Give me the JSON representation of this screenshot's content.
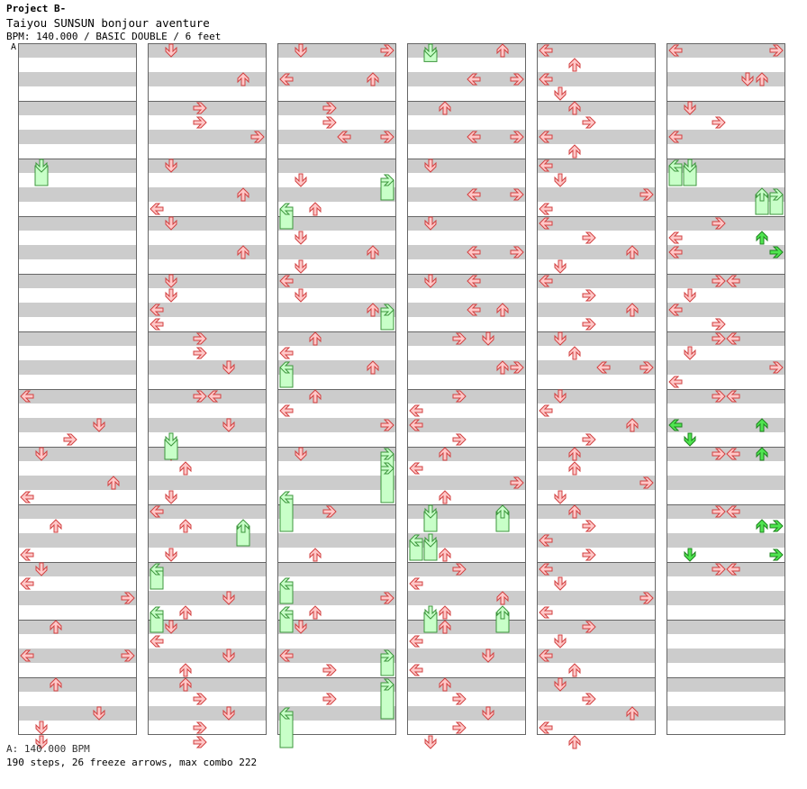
{
  "header": {
    "title": "Project B-",
    "song": "Taiyou SUNSUN bonjour aventure",
    "info": "BPM: 140.000 / BASIC DOUBLE / 6 feet",
    "bpm_marker": "A"
  },
  "footer": {
    "bpm_line": "A: 140.000 BPM",
    "stats": "190 steps, 26 freeze arrows, max combo 222"
  },
  "colors": {
    "tap_fill": "#ffc8c8",
    "tap_stroke": "#d24040",
    "freeze_fill": "#c8ffc8",
    "freeze_stroke": "#3c963c",
    "shock_fill": "#50e650",
    "shock_stroke": "#1e821e",
    "stripe": "#cccccc",
    "column_border": "#666666"
  },
  "columns": [
    {
      "notes": [
        [
          24,
          "L"
        ],
        [
          26,
          "D"
        ],
        [
          27,
          "R"
        ],
        [
          28,
          "D"
        ],
        [
          30,
          "U"
        ],
        [
          31,
          "L"
        ],
        [
          33,
          "U"
        ],
        [
          35,
          "L"
        ],
        [
          36,
          "D"
        ],
        [
          37,
          "L"
        ],
        [
          38,
          "R"
        ],
        [
          40,
          "U"
        ],
        [
          42,
          "L"
        ],
        [
          42,
          "R"
        ],
        [
          44,
          "U"
        ],
        [
          46,
          "D"
        ],
        [
          47,
          "D"
        ],
        [
          48,
          "D"
        ]
      ]
    },
    {
      "notes": [
        [
          0,
          "D"
        ],
        [
          2,
          "U"
        ],
        [
          4,
          "R"
        ],
        [
          5,
          "R"
        ],
        [
          6,
          "R"
        ],
        [
          8,
          "D"
        ],
        [
          10,
          "U"
        ],
        [
          11,
          "L"
        ],
        [
          12,
          "D"
        ],
        [
          14,
          "U"
        ],
        [
          16,
          "D"
        ],
        [
          17,
          "D"
        ],
        [
          18,
          "L"
        ],
        [
          19,
          "L"
        ],
        [
          20,
          "R"
        ],
        [
          21,
          "R"
        ],
        [
          22,
          "D"
        ],
        [
          24,
          "R"
        ],
        [
          24,
          "L"
        ],
        [
          26,
          "D"
        ],
        [
          28,
          "D"
        ],
        [
          29,
          "U"
        ],
        [
          31,
          "D"
        ],
        [
          32,
          "L"
        ],
        [
          33,
          "U"
        ],
        [
          35,
          "D"
        ],
        [
          38,
          "D"
        ],
        [
          39,
          "U"
        ],
        [
          40,
          "D"
        ],
        [
          41,
          "L"
        ],
        [
          42,
          "D"
        ],
        [
          43,
          "U"
        ],
        [
          44,
          "U"
        ],
        [
          45,
          "R"
        ],
        [
          46,
          "D"
        ],
        [
          47,
          "R"
        ],
        [
          48,
          "R"
        ]
      ]
    },
    {
      "notes": [
        [
          0,
          "D"
        ],
        [
          0,
          "R"
        ],
        [
          2,
          "L"
        ],
        [
          2,
          "U"
        ],
        [
          4,
          "R"
        ],
        [
          5,
          "R"
        ],
        [
          6,
          "R"
        ],
        [
          6,
          "L"
        ],
        [
          9,
          "D"
        ],
        [
          11,
          "U"
        ],
        [
          13,
          "D"
        ],
        [
          14,
          "U"
        ],
        [
          15,
          "D"
        ],
        [
          16,
          "L"
        ],
        [
          17,
          "D"
        ],
        [
          18,
          "U"
        ],
        [
          20,
          "U"
        ],
        [
          21,
          "L"
        ],
        [
          22,
          "U"
        ],
        [
          24,
          "U"
        ],
        [
          25,
          "L"
        ],
        [
          26,
          "R"
        ],
        [
          28,
          "D"
        ],
        [
          32,
          "R"
        ],
        [
          33,
          "L"
        ],
        [
          35,
          "U"
        ],
        [
          38,
          "R"
        ],
        [
          39,
          "U"
        ],
        [
          40,
          "D"
        ],
        [
          42,
          "L"
        ],
        [
          43,
          "R"
        ],
        [
          45,
          "R"
        ]
      ]
    },
    {
      "notes": [
        [
          0,
          "D"
        ],
        [
          0,
          "U"
        ],
        [
          2,
          "R"
        ],
        [
          2,
          "L"
        ],
        [
          4,
          "U"
        ],
        [
          6,
          "R"
        ],
        [
          6,
          "L"
        ],
        [
          8,
          "D"
        ],
        [
          10,
          "R"
        ],
        [
          10,
          "L"
        ],
        [
          12,
          "D"
        ],
        [
          14,
          "R"
        ],
        [
          14,
          "L"
        ],
        [
          16,
          "D"
        ],
        [
          16,
          "L"
        ],
        [
          18,
          "U"
        ],
        [
          18,
          "L"
        ],
        [
          20,
          "R"
        ],
        [
          20,
          "D"
        ],
        [
          22,
          "R"
        ],
        [
          22,
          "U"
        ],
        [
          24,
          "R"
        ],
        [
          25,
          "L"
        ],
        [
          26,
          "L"
        ],
        [
          27,
          "R"
        ],
        [
          28,
          "U"
        ],
        [
          29,
          "L"
        ],
        [
          30,
          "R"
        ],
        [
          31,
          "U"
        ],
        [
          35,
          "U"
        ],
        [
          36,
          "R"
        ],
        [
          37,
          "L"
        ],
        [
          38,
          "U"
        ],
        [
          39,
          "U"
        ],
        [
          40,
          "U"
        ],
        [
          41,
          "L"
        ],
        [
          42,
          "D"
        ],
        [
          43,
          "L"
        ],
        [
          44,
          "U"
        ],
        [
          45,
          "R"
        ],
        [
          46,
          "D"
        ],
        [
          47,
          "R"
        ],
        [
          48,
          "D"
        ]
      ]
    },
    {
      "notes": [
        [
          0,
          "L"
        ],
        [
          1,
          "U"
        ],
        [
          2,
          "L"
        ],
        [
          3,
          "D"
        ],
        [
          4,
          "U"
        ],
        [
          5,
          "R"
        ],
        [
          6,
          "L"
        ],
        [
          7,
          "U"
        ],
        [
          8,
          "L"
        ],
        [
          9,
          "D"
        ],
        [
          10,
          "R"
        ],
        [
          11,
          "L"
        ],
        [
          12,
          "L"
        ],
        [
          13,
          "R"
        ],
        [
          14,
          "U"
        ],
        [
          15,
          "D"
        ],
        [
          16,
          "L"
        ],
        [
          17,
          "R"
        ],
        [
          18,
          "U"
        ],
        [
          19,
          "R"
        ],
        [
          20,
          "D"
        ],
        [
          21,
          "U"
        ],
        [
          22,
          "R"
        ],
        [
          22,
          "L"
        ],
        [
          24,
          "D"
        ],
        [
          25,
          "L"
        ],
        [
          26,
          "U"
        ],
        [
          27,
          "R"
        ],
        [
          28,
          "U"
        ],
        [
          29,
          "U"
        ],
        [
          30,
          "R"
        ],
        [
          31,
          "D"
        ],
        [
          32,
          "U"
        ],
        [
          33,
          "R"
        ],
        [
          34,
          "L"
        ],
        [
          35,
          "R"
        ],
        [
          36,
          "L"
        ],
        [
          37,
          "D"
        ],
        [
          38,
          "R"
        ],
        [
          39,
          "L"
        ],
        [
          40,
          "R"
        ],
        [
          41,
          "D"
        ],
        [
          42,
          "L"
        ],
        [
          43,
          "U"
        ],
        [
          44,
          "D"
        ],
        [
          45,
          "R"
        ],
        [
          46,
          "U"
        ],
        [
          47,
          "L"
        ],
        [
          48,
          "U"
        ]
      ]
    },
    {
      "notes": [
        [
          0,
          "L"
        ],
        [
          0,
          "R"
        ],
        [
          2,
          "D"
        ],
        [
          2,
          "U"
        ],
        [
          4,
          "D"
        ],
        [
          5,
          "R"
        ],
        [
          6,
          "L"
        ],
        [
          12,
          "R"
        ],
        [
          13,
          "L"
        ],
        [
          14,
          "L"
        ],
        [
          16,
          "R"
        ],
        [
          16,
          "L"
        ],
        [
          17,
          "D"
        ],
        [
          18,
          "L"
        ],
        [
          19,
          "R"
        ],
        [
          20,
          "R"
        ],
        [
          20,
          "L"
        ],
        [
          21,
          "D"
        ],
        [
          22,
          "R"
        ],
        [
          23,
          "L"
        ],
        [
          24,
          "R"
        ],
        [
          24,
          "L"
        ],
        [
          28,
          "R"
        ],
        [
          28,
          "L"
        ],
        [
          32,
          "R"
        ],
        [
          32,
          "L"
        ],
        [
          36,
          "R"
        ],
        [
          36,
          "L"
        ]
      ]
    }
  ],
  "freezes": [
    [
      0,
      8,
      9,
      "D"
    ],
    [
      1,
      27,
      28,
      "D"
    ],
    [
      1,
      33,
      34,
      "U"
    ],
    [
      1,
      36,
      37,
      "L"
    ],
    [
      1,
      39,
      40,
      "L"
    ],
    [
      2,
      9,
      10,
      "R"
    ],
    [
      2,
      11,
      12,
      "L"
    ],
    [
      2,
      18,
      19,
      "R"
    ],
    [
      2,
      22,
      23,
      "L"
    ],
    [
      2,
      28,
      29,
      "R"
    ],
    [
      2,
      29,
      31,
      "R"
    ],
    [
      2,
      31,
      33,
      "L"
    ],
    [
      2,
      37,
      38,
      "L"
    ],
    [
      2,
      39,
      40,
      "L"
    ],
    [
      2,
      42,
      43,
      "R"
    ],
    [
      2,
      44,
      46,
      "R"
    ],
    [
      2,
      46,
      48,
      "L"
    ],
    [
      3,
      0,
      0.4,
      "D"
    ],
    [
      3,
      32,
      33,
      "D"
    ],
    [
      3,
      32,
      33,
      "U"
    ],
    [
      3,
      34,
      35,
      "L"
    ],
    [
      3,
      34,
      35,
      "D"
    ],
    [
      3,
      39,
      40,
      "D"
    ],
    [
      3,
      39,
      40,
      "U"
    ],
    [
      5,
      8,
      9,
      "L"
    ],
    [
      5,
      8,
      9,
      "D"
    ],
    [
      5,
      10,
      11,
      "R"
    ],
    [
      5,
      10,
      11,
      "U"
    ]
  ],
  "shocks": [
    [
      5,
      13,
      "U"
    ],
    [
      5,
      14,
      "R"
    ],
    [
      5,
      26,
      "L"
    ],
    [
      5,
      26,
      "U"
    ],
    [
      5,
      27,
      "D"
    ],
    [
      5,
      28,
      "U"
    ],
    [
      5,
      33,
      "R"
    ],
    [
      5,
      33,
      "U"
    ],
    [
      5,
      35,
      "R"
    ],
    [
      5,
      35,
      "D"
    ]
  ]
}
